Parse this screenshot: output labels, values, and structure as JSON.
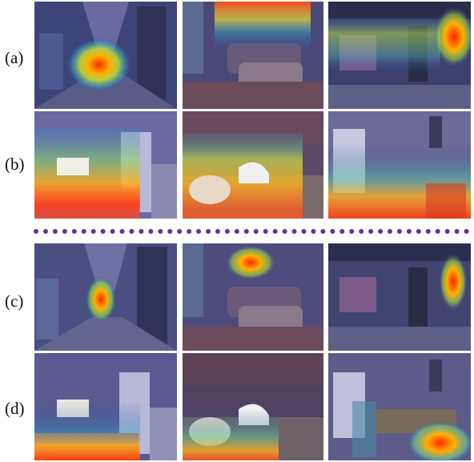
{
  "row_labels": {
    "a": "(a)",
    "b": "(b)",
    "c": "(c)",
    "d": "(d)"
  },
  "colors": {
    "divider": "#6a2f97",
    "background": "#ffffff"
  },
  "icons": [
    "heatmap-overlay-image"
  ]
}
